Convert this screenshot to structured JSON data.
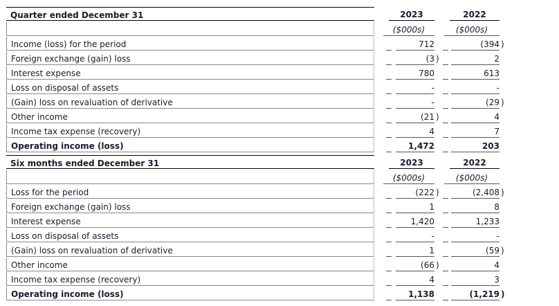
{
  "sections": [
    {
      "title": "Quarter ended December 31",
      "years": [
        "2023",
        "2022"
      ],
      "units": [
        "($000s)",
        "($000s)"
      ],
      "rows": [
        {
          "label": "Income (loss) for the period",
          "v1": "712",
          "p1": "",
          "v2": "(394",
          "p2": ")"
        },
        {
          "label": "Foreign exchange (gain) loss",
          "v1": "(3",
          "p1": ")",
          "v2": "2",
          "p2": ""
        },
        {
          "label": "Interest expense",
          "v1": "780",
          "p1": "",
          "v2": "613",
          "p2": ""
        },
        {
          "label": "Loss on disposal of assets",
          "v1": "-",
          "p1": "",
          "v2": "-",
          "p2": ""
        },
        {
          "label": "(Gain) loss on revaluation of derivative",
          "v1": "-",
          "p1": "",
          "v2": "(29",
          "p2": ")"
        },
        {
          "label": "Other income",
          "v1": "(21",
          "p1": ")",
          "v2": "4",
          "p2": ""
        },
        {
          "label": "Income tax expense (recovery)",
          "v1": "4",
          "p1": "",
          "v2": "7",
          "p2": ""
        },
        {
          "label": "Operating income (loss)",
          "v1": "1,472",
          "p1": "",
          "v2": "203",
          "p2": "",
          "bold": true
        }
      ]
    },
    {
      "title": "Six months ended December 31",
      "years": [
        "2023",
        "2022"
      ],
      "units": [
        "($000s)",
        "($000s)"
      ],
      "rows": [
        {
          "label": "Loss for the period",
          "v1": "(222",
          "p1": ")",
          "v2": "(2,408",
          "p2": ")"
        },
        {
          "label": "Foreign exchange (gain) loss",
          "v1": "1",
          "p1": "",
          "v2": "8",
          "p2": ""
        },
        {
          "label": "Interest expense",
          "v1": "1,420",
          "p1": "",
          "v2": "1,233",
          "p2": ""
        },
        {
          "label": "Loss on disposal of assets",
          "v1": "-",
          "p1": "",
          "v2": "-",
          "p2": ""
        },
        {
          "label": "(Gain) loss on revaluation of derivative",
          "v1": "1",
          "p1": "",
          "v2": "(59",
          "p2": ")"
        },
        {
          "label": "Other income",
          "v1": "(66",
          "p1": ")",
          "v2": "4",
          "p2": ""
        },
        {
          "label": "Income tax expense (recovery)",
          "v1": "4",
          "p1": "",
          "v2": "3",
          "p2": ""
        },
        {
          "label": "Operating income (loss)",
          "v1": "1,138",
          "p1": "",
          "v2": "(1,219",
          "p2": ")",
          "bold": true
        }
      ]
    }
  ]
}
